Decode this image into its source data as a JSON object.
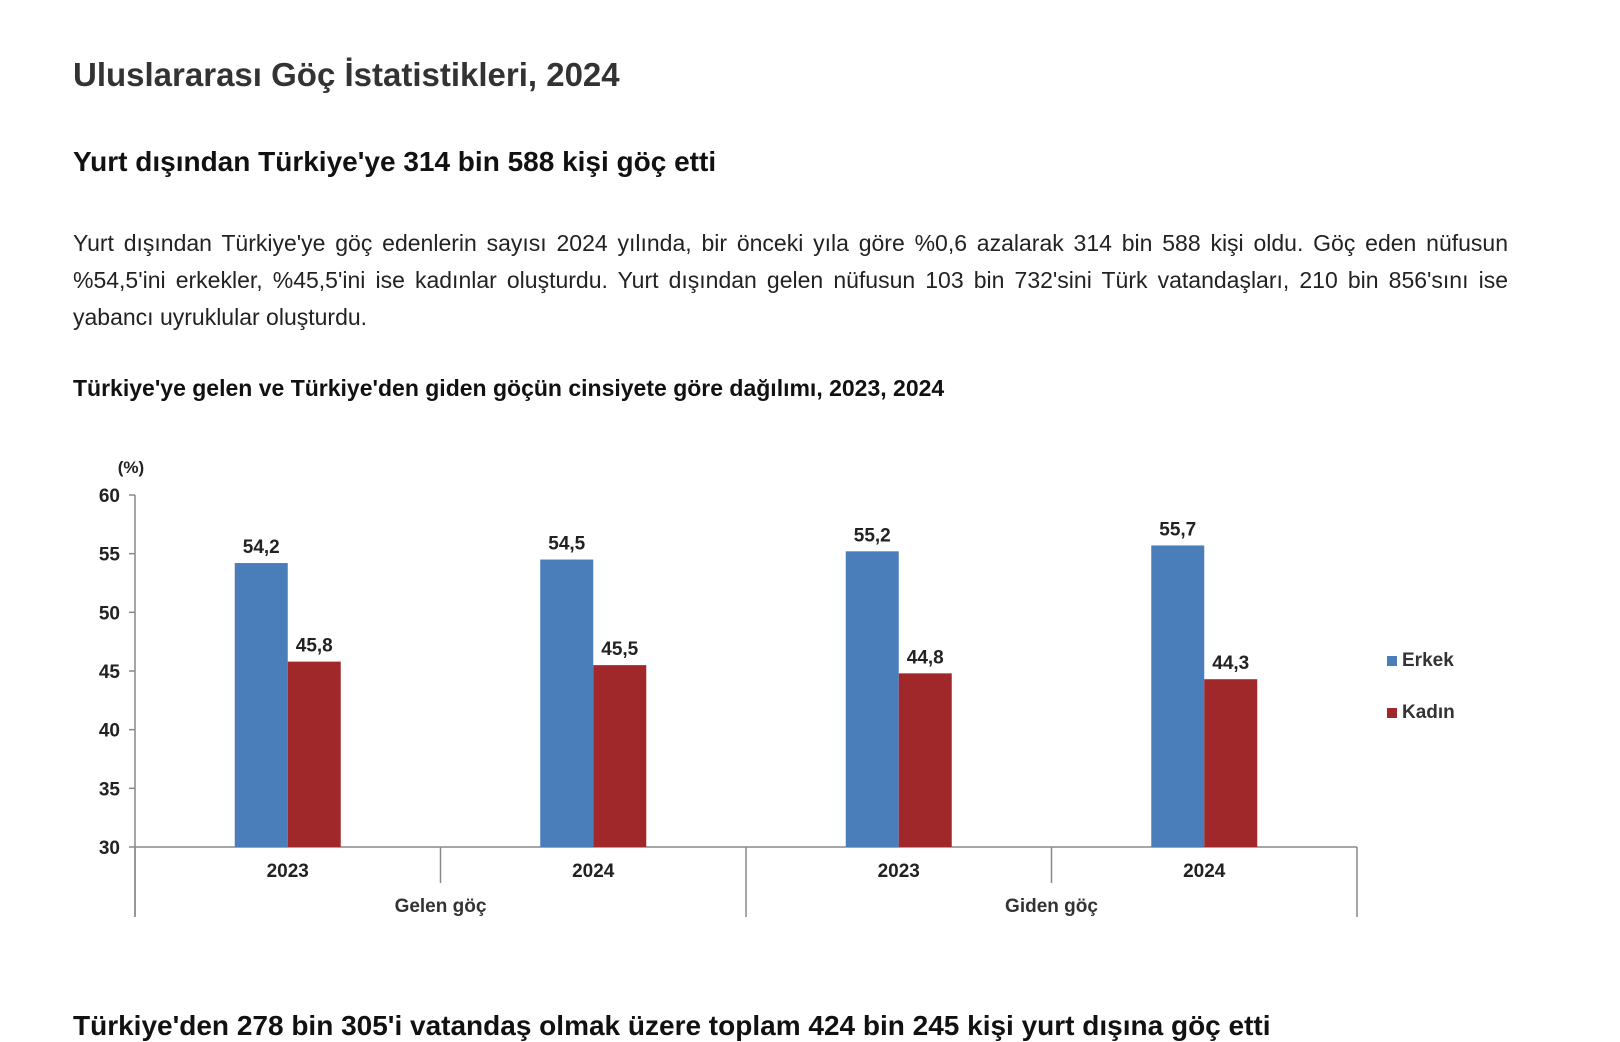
{
  "page": {
    "title": "Uluslararası Göç İstatistikleri, 2024",
    "section1_heading": "Yurt dışından Türkiye'ye 314 bin 588 kişi göç etti",
    "section1_paragraph": "Yurt dışından Türkiye'ye göç edenlerin sayısı 2024 yılında, bir önceki yıla göre %0,6 azalarak 314 bin 588 kişi oldu. Göç eden nüfusun %54,5'ini erkekler, %45,5'ini ise kadınlar oluşturdu. Yurt dışından gelen nüfusun 103 bin 732'sini Türk vatandaşları, 210 bin 856'sını ise yabancı uyruklular oluşturdu.",
    "chart_title": "Türkiye'ye gelen ve Türkiye'den giden göçün cinsiyete göre dağılımı, 2023, 2024",
    "section2_heading": "Türkiye'den 278 bin 305'i vatandaş olmak üzere toplam 424 bin 245 kişi yurt dışına göç etti"
  },
  "chart_data": {
    "type": "bar",
    "title": "Türkiye'ye gelen ve Türkiye'den giden göçün cinsiyete göre dağılımı, 2023, 2024",
    "ylabel": "(%)",
    "ylim": [
      30,
      60
    ],
    "yticks": [
      30,
      35,
      40,
      45,
      50,
      55,
      60
    ],
    "categories": [
      "2023",
      "2024",
      "2023",
      "2024"
    ],
    "groups": [
      "Gelen göç",
      "Giden göç"
    ],
    "series": [
      {
        "name": "Erkek",
        "color": "#4a7ebb",
        "values": [
          54.2,
          54.5,
          55.2,
          55.7
        ],
        "labels": [
          "54,2",
          "54,5",
          "55,2",
          "55,7"
        ]
      },
      {
        "name": "Kadın",
        "color": "#a0282a",
        "values": [
          45.8,
          45.5,
          44.8,
          44.3
        ],
        "labels": [
          "45,8",
          "45,5",
          "44,8",
          "44,3"
        ]
      }
    ],
    "legend": "right",
    "grid": false
  }
}
